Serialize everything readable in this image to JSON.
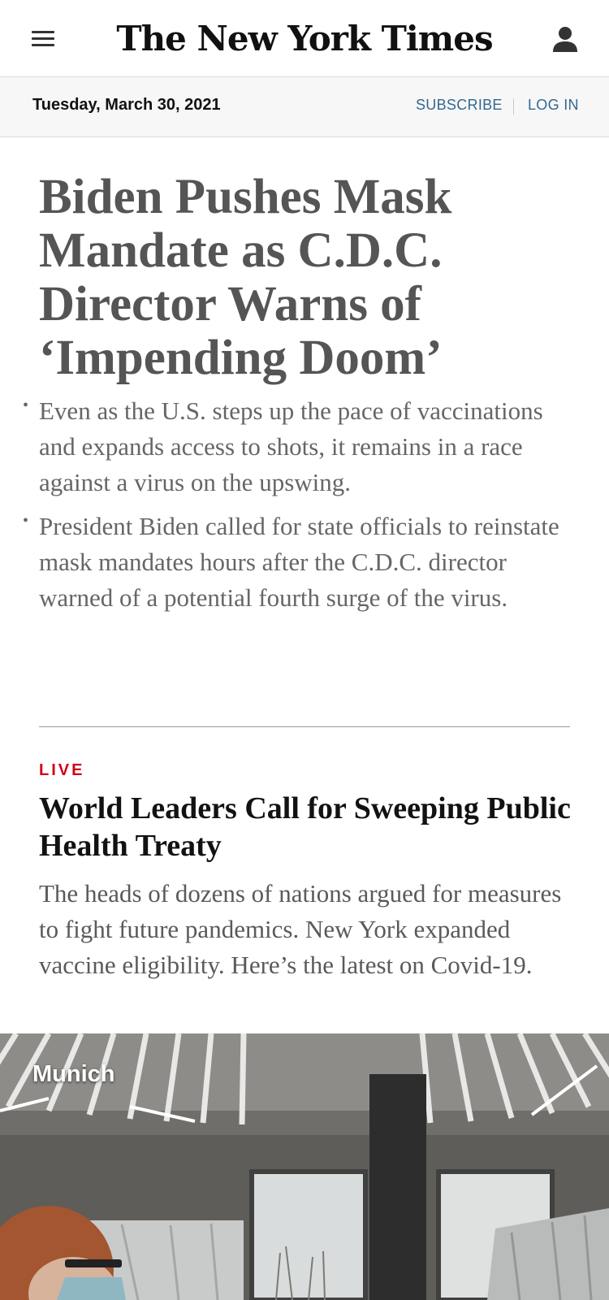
{
  "header": {
    "logo_text": "The New York Times",
    "menu_icon": "hamburger-menu-icon",
    "account_icon": "user-account-icon"
  },
  "datebar": {
    "date": "Tuesday, March 30, 2021",
    "subscribe_label": "SUBSCRIBE",
    "login_label": "LOG IN",
    "link_color": "#326891"
  },
  "lead_story": {
    "headline": "Biden Pushes Mask Mandate as C.D.C. Director Warns of ‘Impending Doom’",
    "bullets": [
      "Even as the U.S. steps up the pace of vaccinations and expands access to shots, it remains in a race against a virus on the upswing.",
      "President Biden called for state officials to reinstate mask mandates hours after the C.D.C. director warned of a potential fourth surge of the virus."
    ]
  },
  "second_story": {
    "label": "LIVE",
    "label_color": "#d0021b",
    "headline": "World Leaders Call for Sweeping Public Health Treaty",
    "summary": "The heads of dozens of nations argued for measures to fight future pandemics. New York expanded vaccine eligibility. Here’s the latest on Covid-19.",
    "photo_caption": "Munich"
  }
}
